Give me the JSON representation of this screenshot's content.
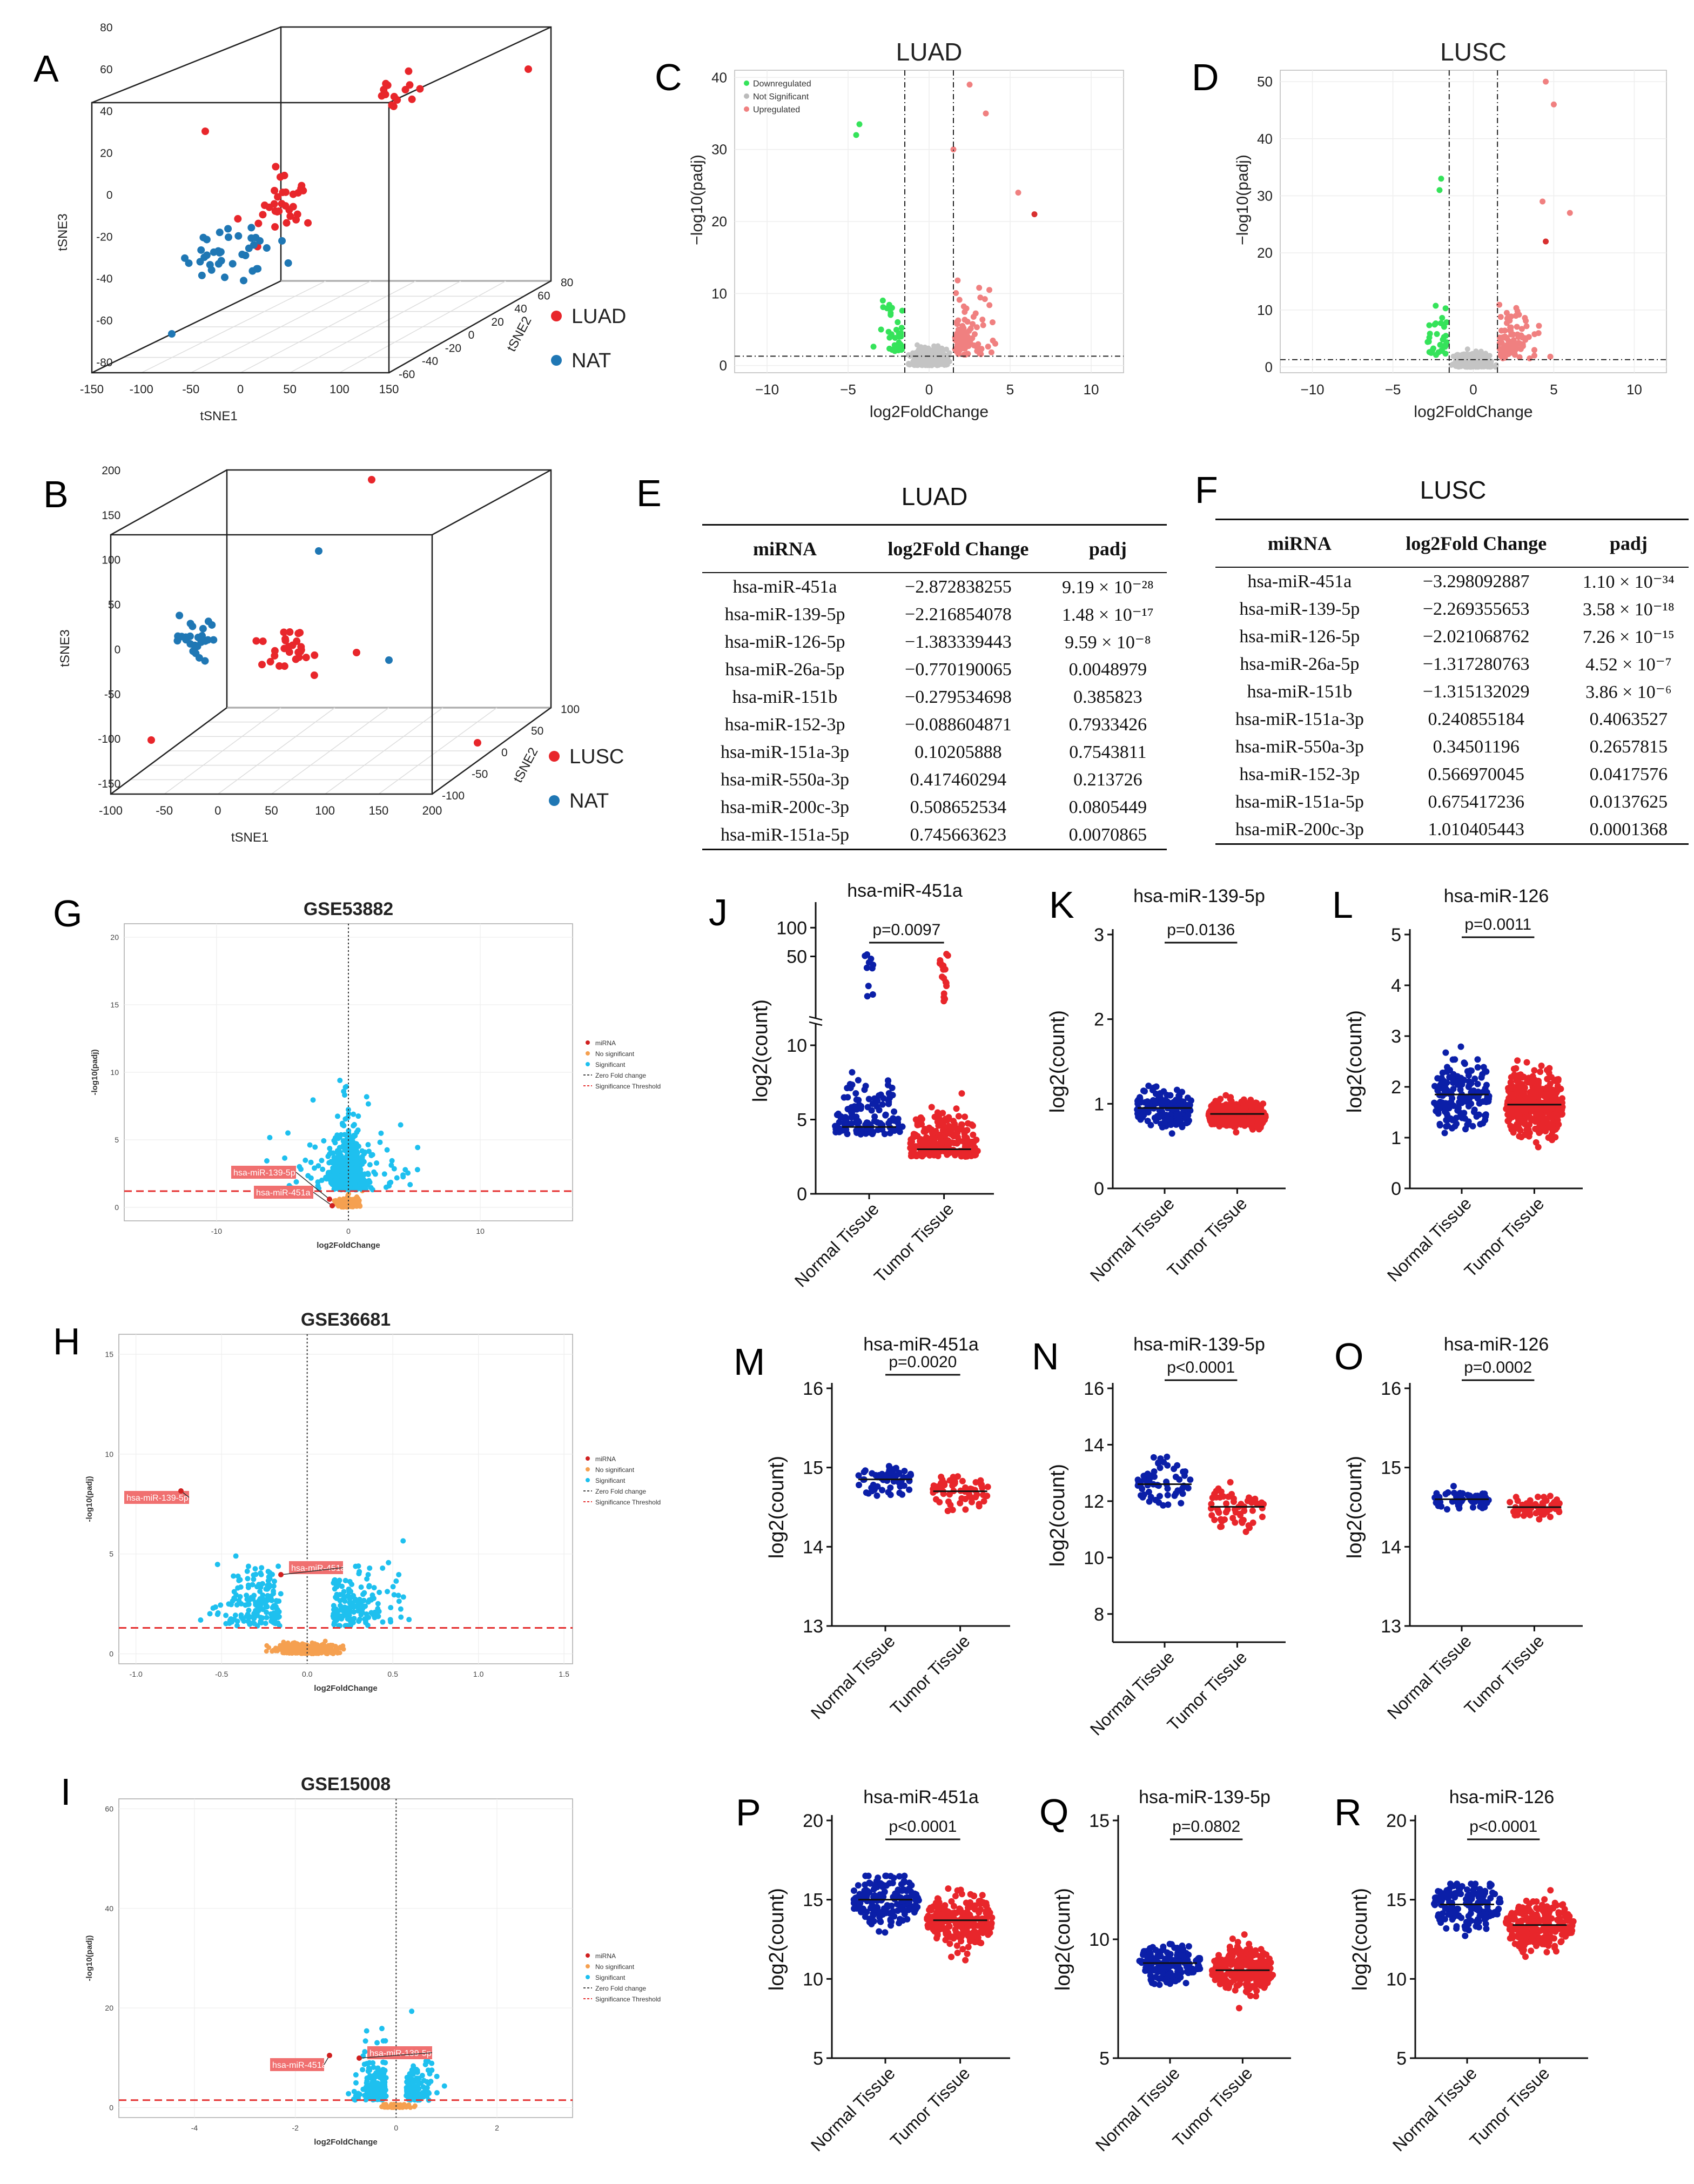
{
  "panel_labels": {
    "A": "A",
    "B": "B",
    "C": "C",
    "D": "D",
    "E": "E",
    "F": "F",
    "G": "G",
    "H": "H",
    "I": "I",
    "J": "J",
    "K": "K",
    "L": "L",
    "M": "M",
    "N": "N",
    "O": "O",
    "P": "P",
    "Q": "Q",
    "R": "R"
  },
  "colors": {
    "red": "#e8262b",
    "blue": "#1f77b4",
    "navy": "#0b1fa8",
    "green": "#35e35a",
    "grey": "#c4c4c4",
    "pink": "#f08080",
    "cyan": "#1ec0ef",
    "orange": "#f5a050",
    "dashred": "#e53030"
  },
  "chart_data": [
    {
      "id": "A",
      "type": "scatter",
      "title": "",
      "xlabel": "tSNE1",
      "ylabel": "tSNE3",
      "zlabel": "tSNE2",
      "xticks": [
        "-150",
        "-100",
        "-50",
        "0",
        "50",
        "100",
        "150"
      ],
      "yticks": [
        "-80",
        "-60",
        "-40",
        "-20",
        "0",
        "20",
        "40",
        "60",
        "80"
      ],
      "zticks": [
        "-60",
        "-40",
        "-20",
        "0",
        "20",
        "40",
        "60",
        "80"
      ],
      "legend": [
        "LUAD",
        "NAT"
      ]
    },
    {
      "id": "B",
      "type": "scatter",
      "title": "",
      "xlabel": "tSNE1",
      "ylabel": "tSNE3",
      "zlabel": "tSNE2",
      "xticks": [
        "-100",
        "-50",
        "0",
        "50",
        "100",
        "150",
        "200"
      ],
      "yticks": [
        "-150",
        "-100",
        "-50",
        "0",
        "50",
        "100",
        "150",
        "200"
      ],
      "zticks": [
        "-100",
        "-50",
        "0",
        "50",
        "100"
      ],
      "legend": [
        "LUSC",
        "NAT"
      ]
    },
    {
      "id": "C",
      "type": "scatter",
      "title": "LUAD",
      "xlabel": "log2FoldChange",
      "ylabel": "−log10(padj)",
      "xticks": [
        "−10",
        "−5",
        "0",
        "5",
        "10"
      ],
      "yticks": [
        "0",
        "10",
        "20",
        "30",
        "40"
      ],
      "xlim": [
        -12,
        12
      ],
      "ylim": [
        -1,
        41
      ],
      "legend": [
        "Downregulated",
        "Not Significant",
        "Upregulated"
      ]
    },
    {
      "id": "D",
      "type": "scatter",
      "title": "LUSC",
      "xlabel": "log2FoldChange",
      "ylabel": "−log10(padj)",
      "xticks": [
        "−10",
        "−5",
        "0",
        "5",
        "10"
      ],
      "yticks": [
        "0",
        "10",
        "20",
        "30",
        "40",
        "50"
      ],
      "xlim": [
        -12,
        12
      ],
      "ylim": [
        -1,
        52
      ]
    },
    {
      "id": "G",
      "type": "scatter",
      "title": "GSE53882",
      "xlabel": "log2FoldChange",
      "ylabel": "-log10(padj)",
      "xticks": [
        "-10",
        "0",
        "10"
      ],
      "yticks": [
        "0",
        "5",
        "10",
        "15",
        "20"
      ],
      "xlim": [
        -17,
        17
      ],
      "ylim": [
        -1,
        21
      ],
      "legend": [
        "miRNA",
        "No significant",
        "Significant",
        "Zero Fold change",
        "Significance Threshold"
      ],
      "annotations": [
        "hsa-miR-139-5p",
        "hsa-miR-451a"
      ]
    },
    {
      "id": "H",
      "type": "scatter",
      "title": "GSE36681",
      "xlabel": "log2FoldChange",
      "ylabel": "-log10(padj)",
      "xticks": [
        "-1.0",
        "-0.5",
        "0.0",
        "0.5",
        "1.0",
        "1.5"
      ],
      "yticks": [
        "0",
        "5",
        "10",
        "15"
      ],
      "xlim": [
        -1.1,
        1.55
      ],
      "ylim": [
        -0.5,
        16
      ],
      "legend": [
        "miRNA",
        "No significant",
        "Significant",
        "Zero Fold change",
        "Significance Threshold"
      ],
      "annotations": [
        "hsa-miR-139-5p",
        "hsa-miR-451a"
      ]
    },
    {
      "id": "I",
      "type": "scatter",
      "title": "GSE15008",
      "xlabel": "log2FoldChange",
      "ylabel": "-log10(padj)",
      "xticks": [
        "-4",
        "-2",
        "0",
        "2"
      ],
      "yticks": [
        "0",
        "20",
        "40",
        "60"
      ],
      "xlim": [
        -5.5,
        3.5
      ],
      "ylim": [
        -2,
        62
      ],
      "legend": [
        "miRNA",
        "No significant",
        "Significant",
        "Zero Fold change",
        "Significance Threshold"
      ],
      "annotations": [
        "hsa-miR-451a",
        "hsa-miR-139-5p"
      ]
    },
    {
      "id": "J",
      "type": "scatter",
      "title": "hsa-miR-451a",
      "ylabel": "log2(count)",
      "categories": [
        "Normal Tissue",
        "Tumor Tissue"
      ],
      "pvalue": "p=0.0097",
      "yticks": [
        "0",
        "5",
        "10",
        "50",
        "100"
      ],
      "means": [
        4.5,
        3.0
      ]
    },
    {
      "id": "K",
      "type": "scatter",
      "title": "hsa-miR-139-5p",
      "ylabel": "log2(count)",
      "categories": [
        "Normal Tissue",
        "Tumor Tissue"
      ],
      "pvalue": "p=0.0136",
      "yticks": [
        "0",
        "1",
        "2",
        "3"
      ],
      "ylim": [
        0,
        3
      ],
      "means": [
        0.95,
        0.88
      ]
    },
    {
      "id": "L",
      "type": "scatter",
      "title": "hsa-miR-126",
      "ylabel": "log2(count)",
      "categories": [
        "Normal Tissue",
        "Tumor Tissue"
      ],
      "pvalue": "p=0.0011",
      "yticks": [
        "0",
        "1",
        "2",
        "3",
        "4",
        "5"
      ],
      "ylim": [
        0,
        5
      ],
      "means": [
        1.85,
        1.65
      ]
    },
    {
      "id": "M",
      "type": "scatter",
      "title": "hsa-miR-451a",
      "ylabel": "log2(count)",
      "categories": [
        "Normal Tissue",
        "Tumor Tissue"
      ],
      "pvalue": "p=0.0020",
      "yticks": [
        "13",
        "14",
        "15",
        "16"
      ],
      "ylim": [
        13,
        16
      ],
      "means": [
        14.85,
        14.7
      ]
    },
    {
      "id": "N",
      "type": "scatter",
      "title": "hsa-miR-139-5p",
      "ylabel": "log2(count)",
      "categories": [
        "Normal Tissue",
        "Tumor Tissue"
      ],
      "pvalue": "p<0.0001",
      "yticks": [
        "8",
        "10",
        "12",
        "14",
        "16"
      ],
      "ylim": [
        7,
        16
      ],
      "means": [
        12.6,
        11.8
      ]
    },
    {
      "id": "O",
      "type": "scatter",
      "title": "hsa-miR-126",
      "ylabel": "log2(count)",
      "categories": [
        "Normal Tissue",
        "Tumor Tissue"
      ],
      "pvalue": "p=0.0002",
      "yticks": [
        "13",
        "14",
        "15",
        "16"
      ],
      "ylim": [
        13,
        16
      ],
      "means": [
        14.6,
        14.5
      ]
    },
    {
      "id": "P",
      "type": "scatter",
      "title": "hsa-miR-451a",
      "ylabel": "log2(count)",
      "categories": [
        "Normal Tissue",
        "Tumor Tissue"
      ],
      "pvalue": "p<0.0001",
      "yticks": [
        "5",
        "10",
        "15",
        "20"
      ],
      "ylim": [
        5,
        20
      ],
      "means": [
        15.0,
        13.7
      ]
    },
    {
      "id": "Q",
      "type": "scatter",
      "title": "hsa-miR-139-5p",
      "ylabel": "log2(count)",
      "categories": [
        "Normal Tissue",
        "Tumor Tissue"
      ],
      "pvalue": "p=0.0802",
      "yticks": [
        "5",
        "10",
        "15"
      ],
      "ylim": [
        5,
        15
      ],
      "means": [
        9.0,
        8.7
      ]
    },
    {
      "id": "R",
      "type": "scatter",
      "title": "hsa-miR-126",
      "ylabel": "log2(count)",
      "categories": [
        "Normal Tissue",
        "Tumor Tissue"
      ],
      "pvalue": "p<0.0001",
      "yticks": [
        "5",
        "10",
        "15",
        "20"
      ],
      "ylim": [
        5,
        20
      ],
      "means": [
        14.7,
        13.4
      ]
    }
  ],
  "tables": {
    "E": {
      "title": "LUAD",
      "headers": [
        "miRNA",
        "log2Fold Change",
        "padj"
      ],
      "rows": [
        [
          "hsa-miR-451a",
          "−2.872838255",
          "9.19 × 10⁻²⁸"
        ],
        [
          "hsa-miR-139-5p",
          "−2.216854078",
          "1.48 × 10⁻¹⁷"
        ],
        [
          "hsa-miR-126-5p",
          "−1.383339443",
          "9.59 × 10⁻⁸"
        ],
        [
          "hsa-miR-26a-5p",
          "−0.770190065",
          "0.0048979"
        ],
        [
          "hsa-miR-151b",
          "−0.279534698",
          "0.385823"
        ],
        [
          "hsa-miR-152-3p",
          "−0.088604871",
          "0.7933426"
        ],
        [
          "hsa-miR-151a-3p",
          "0.10205888",
          "0.7543811"
        ],
        [
          "hsa-miR-550a-3p",
          "0.417460294",
          "0.213726"
        ],
        [
          "hsa-miR-200c-3p",
          "0.508652534",
          "0.0805449"
        ],
        [
          "hsa-miR-151a-5p",
          "0.745663623",
          "0.0070865"
        ]
      ]
    },
    "F": {
      "title": "LUSC",
      "headers": [
        "miRNA",
        "log2Fold Change",
        "padj"
      ],
      "rows": [
        [
          "hsa-miR-451a",
          "−3.298092887",
          "1.10 × 10⁻³⁴"
        ],
        [
          "hsa-miR-139-5p",
          "−2.269355653",
          "3.58 × 10⁻¹⁸"
        ],
        [
          "hsa-miR-126-5p",
          "−2.021068762",
          "7.26 × 10⁻¹⁵"
        ],
        [
          "hsa-miR-26a-5p",
          "−1.317280763",
          "4.52 × 10⁻⁷"
        ],
        [
          "hsa-miR-151b",
          "−1.315132029",
          "3.86 × 10⁻⁶"
        ],
        [
          "hsa-miR-151a-3p",
          "0.240855184",
          "0.4063527"
        ],
        [
          "hsa-miR-550a-3p",
          "0.34501196",
          "0.2657815"
        ],
        [
          "hsa-miR-152-3p",
          "0.566970045",
          "0.0417576"
        ],
        [
          "hsa-miR-151a-5p",
          "0.675417236",
          "0.0137625"
        ],
        [
          "hsa-miR-200c-3p",
          "1.010405443",
          "0.0001368"
        ]
      ]
    }
  }
}
